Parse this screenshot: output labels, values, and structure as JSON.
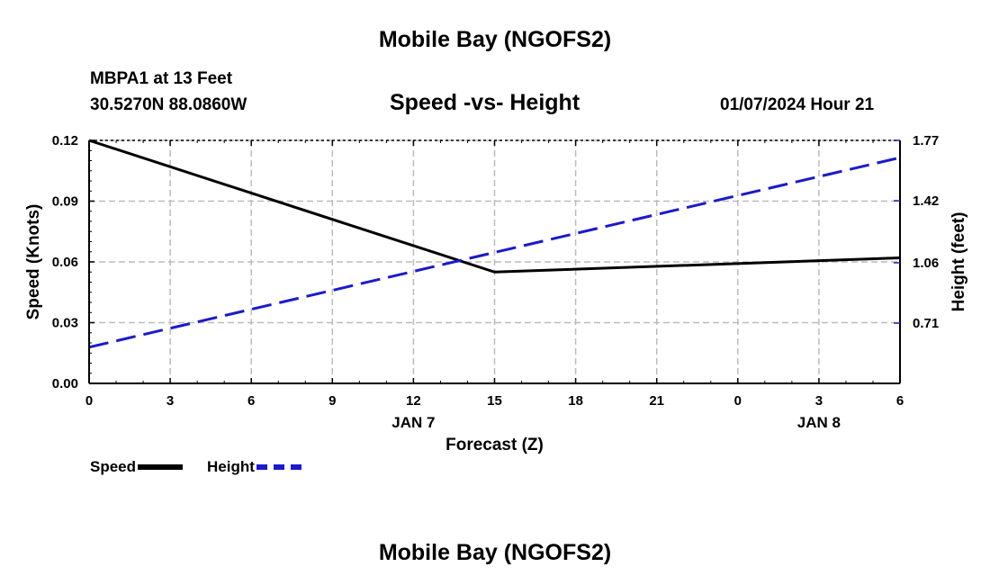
{
  "header": {
    "title": "Mobile Bay (NGOFS2)",
    "station": "MBPA1 at 13 Feet",
    "coords": "30.5270N  88.0860W",
    "chart_title": "Speed -vs- Height",
    "datetime": "01/07/2024 Hour 21"
  },
  "footer": {
    "title": "Mobile Bay (NGOFS2)"
  },
  "colors": {
    "speed": "#000000",
    "height": "#1a1acc",
    "grid": "#bbbbbb"
  },
  "chart_data": {
    "type": "line",
    "title": "Speed -vs- Height",
    "xlabel": "Forecast (Z)",
    "ylabel": "Speed (Knots)",
    "y2label": "Height (feet)",
    "x_ticks": [
      "0",
      "3",
      "6",
      "9",
      "12",
      "15",
      "18",
      "21",
      "0",
      "3",
      "6"
    ],
    "x_date_labels": [
      {
        "tick_index": 4,
        "label": "JAN 7"
      },
      {
        "tick_index": 9,
        "label": "JAN 8"
      }
    ],
    "y_ticks": [
      "0.00",
      "0.03",
      "0.06",
      "0.09",
      "0.12"
    ],
    "ylim": [
      0,
      0.12
    ],
    "y2_ticks": [
      "0.71",
      "1.06",
      "1.42",
      "1.77"
    ],
    "y2lim": [
      0.36,
      1.77
    ],
    "grid": true,
    "legend_position": "bottom-left",
    "series": [
      {
        "name": "Speed",
        "style": "solid",
        "axis": "left",
        "points": [
          {
            "x": 0,
            "y": 0.12
          },
          {
            "x": 15,
            "y": 0.055
          },
          {
            "x": 30,
            "y": 0.062
          }
        ]
      },
      {
        "name": "Height",
        "style": "dashed",
        "axis": "right",
        "points": [
          {
            "x": 0,
            "y": 0.57
          },
          {
            "x": 30,
            "y": 1.67
          }
        ]
      }
    ]
  }
}
